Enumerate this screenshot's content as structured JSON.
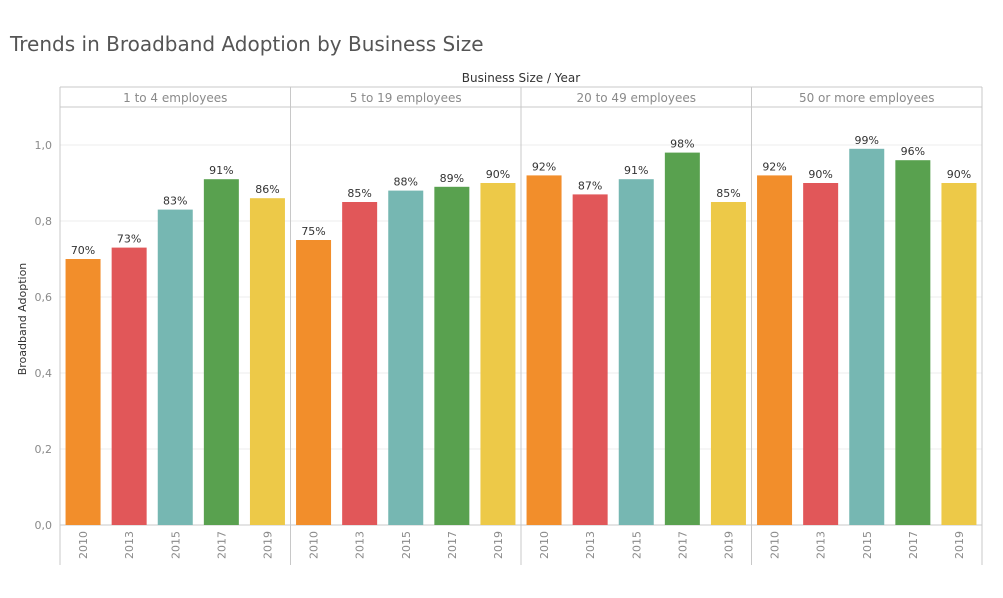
{
  "title": "Trends in Broadband Adoption by Business Size",
  "chart_data": {
    "type": "bar",
    "title": "Trends in Broadband Adoption by Business Size",
    "column_header": "Business Size / Year",
    "ylabel": "Broadband Adoption",
    "ylim": [
      0,
      1.1
    ],
    "yticks": [
      "0,0",
      "0,2",
      "0,4",
      "0,6",
      "0,8",
      "1,0"
    ],
    "ytick_values": [
      0,
      0.2,
      0.4,
      0.6,
      0.8,
      1.0
    ],
    "grid": true,
    "years": [
      "2010",
      "2013",
      "2015",
      "2017",
      "2019"
    ],
    "year_colors": [
      "#F28E2B",
      "#E15759",
      "#76B7B2",
      "#59A14F",
      "#EDC948"
    ],
    "groups": [
      {
        "name": "1 to 4 employees",
        "values": [
          0.7,
          0.73,
          0.83,
          0.91,
          0.86
        ],
        "labels": [
          "70%",
          "73%",
          "83%",
          "91%",
          "86%"
        ]
      },
      {
        "name": "5 to 19 employees",
        "values": [
          0.75,
          0.85,
          0.88,
          0.89,
          0.9
        ],
        "labels": [
          "75%",
          "85%",
          "88%",
          "89%",
          "90%"
        ]
      },
      {
        "name": "20 to 49 employees",
        "values": [
          0.92,
          0.87,
          0.91,
          0.98,
          0.85
        ],
        "labels": [
          "92%",
          "87%",
          "91%",
          "98%",
          "85%"
        ]
      },
      {
        "name": "50 or more employees",
        "values": [
          0.92,
          0.9,
          0.99,
          0.96,
          0.9
        ],
        "labels": [
          "92%",
          "90%",
          "99%",
          "96%",
          "90%"
        ]
      }
    ]
  }
}
